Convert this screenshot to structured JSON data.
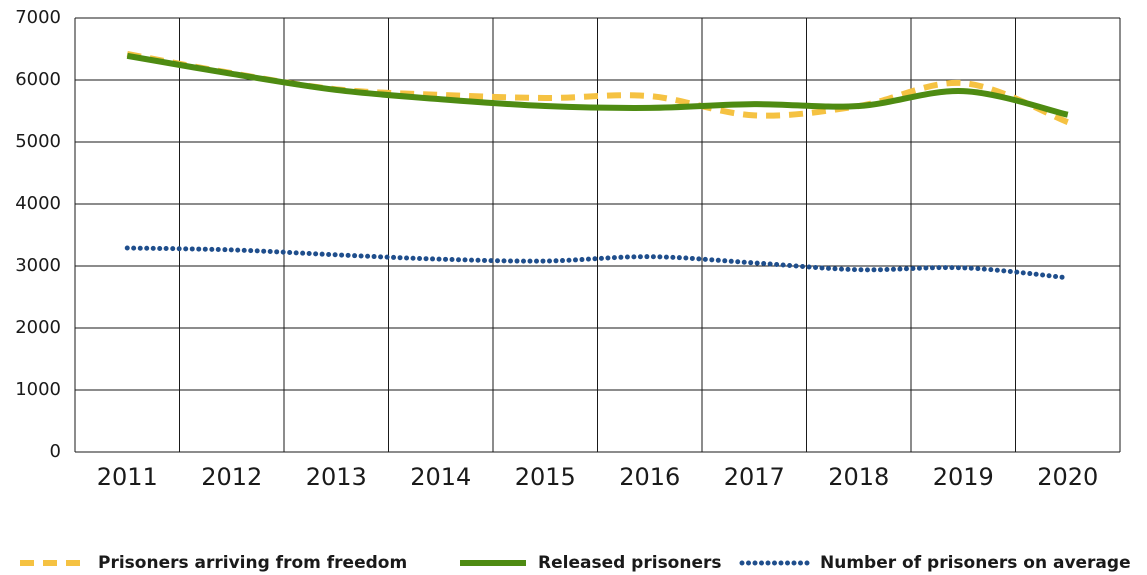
{
  "chart_data": {
    "type": "line",
    "categories": [
      "2011",
      "2012",
      "2013",
      "2014",
      "2015",
      "2016",
      "2017",
      "2018",
      "2019",
      "2020"
    ],
    "series": [
      {
        "name": "Prisoners arriving from freedom",
        "color": "#f5c242",
        "style": "dashed",
        "values": [
          6420,
          6110,
          5850,
          5760,
          5710,
          5740,
          5430,
          5580,
          5950,
          5320
        ]
      },
      {
        "name": "Released prisoners",
        "color": "#4e8b12",
        "style": "solid",
        "values": [
          6390,
          6100,
          5840,
          5690,
          5580,
          5550,
          5610,
          5580,
          5820,
          5440
        ]
      },
      {
        "name": "Number of prisoners on average",
        "color": "#1f4e8c",
        "style": "dotted",
        "values": [
          3290,
          3260,
          3180,
          3110,
          3080,
          3150,
          3050,
          2940,
          2970,
          2810
        ]
      }
    ],
    "ylim": [
      0,
      7000
    ],
    "yticks": [
      0,
      1000,
      2000,
      3000,
      4000,
      5000,
      6000,
      7000
    ],
    "grid": true,
    "legend": "bottom"
  }
}
